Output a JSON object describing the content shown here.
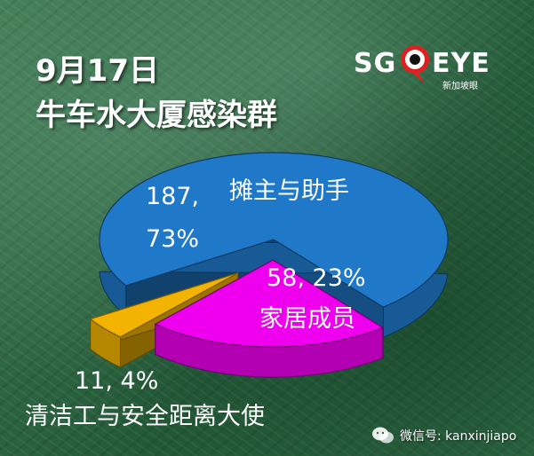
{
  "header": {
    "date": "9月17日",
    "title": "牛车水大厦感染群"
  },
  "logo": {
    "left": "SG",
    "right": "EYE",
    "sub": "新加坡眼",
    "icon": "eye-pin-icon"
  },
  "watermark": {
    "icon": "wechat-icon",
    "text": "微信号: kanxinjiapo"
  },
  "colors": {
    "background": "#2f6b45",
    "stall_owners": "#1f78c8",
    "household": "#ee00ee",
    "cleaners": "#f2b400",
    "text": "#ffffff"
  },
  "chart_data": {
    "type": "pie",
    "title": "牛车水大厦感染群",
    "subtitle": "9月17日",
    "slices": [
      {
        "label": "摊主与助手",
        "value": 187,
        "percent": 73,
        "value_text": "187,",
        "percent_text": "73%",
        "color": "#1f78c8",
        "exploded": false
      },
      {
        "label": "家居成员",
        "value": 58,
        "percent": 23,
        "value_text": "58, 23%",
        "color": "#ee00ee",
        "exploded": true
      },
      {
        "label": "清洁工与安全距离大使",
        "value": 11,
        "percent": 4,
        "value_text": "11, 4%",
        "color": "#f2b400",
        "exploded": true
      }
    ],
    "legend": "none",
    "style": "3d-exploded"
  }
}
